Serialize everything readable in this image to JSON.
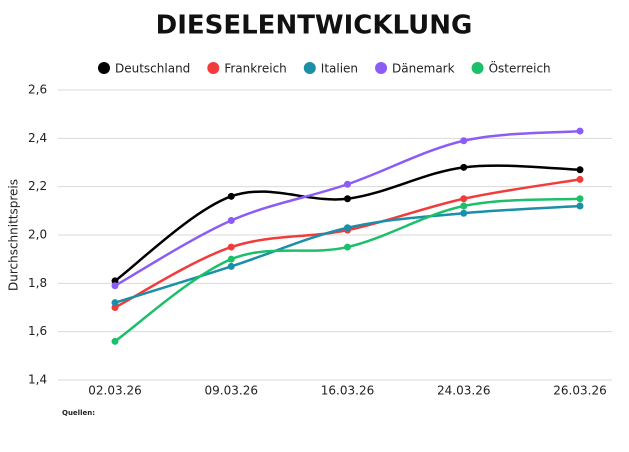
{
  "chart_data": {
    "type": "line",
    "title": "DIESELENTWICKLUNG",
    "y_label": "Durchschnittspreis",
    "categories": [
      "02.03.26",
      "09.03.26",
      "16.03.26",
      "24.03.26",
      "26.03.26"
    ],
    "series": [
      {
        "name": "Deutschland",
        "color": "#000000",
        "values": [
          1.81,
          2.16,
          2.15,
          2.28,
          2.27
        ]
      },
      {
        "name": "Frankreich",
        "color": "#f23b3b",
        "values": [
          1.7,
          1.95,
          2.02,
          2.15,
          2.23
        ]
      },
      {
        "name": "Italien",
        "color": "#1b8fa8",
        "values": [
          1.72,
          1.87,
          2.03,
          2.09,
          2.12
        ]
      },
      {
        "name": "Dänemark",
        "color": "#8b5cf6",
        "values": [
          1.79,
          2.06,
          2.21,
          2.39,
          2.43
        ]
      },
      {
        "name": "Österreich",
        "color": "#1cc06a",
        "values": [
          1.56,
          1.9,
          1.95,
          2.12,
          2.15
        ]
      }
    ],
    "ylim": [
      1.4,
      2.6
    ],
    "yticks": [
      {
        "value": 1.4,
        "label": "1,4"
      },
      {
        "value": 1.6,
        "label": "1,6"
      },
      {
        "value": 1.8,
        "label": "1,8"
      },
      {
        "value": 2.0,
        "label": "2,0"
      },
      {
        "value": 2.2,
        "label": "2,2"
      },
      {
        "value": 2.4,
        "label": "2,4"
      },
      {
        "value": 2.6,
        "label": "2,6"
      }
    ],
    "grid": true,
    "legend": "top",
    "sources_title": "Quellen:"
  }
}
